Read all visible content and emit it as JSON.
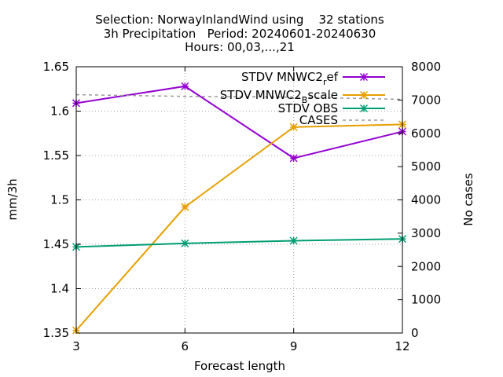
{
  "chart_data": {
    "type": "line",
    "title_lines": [
      "Selection: NorwayInlandWind using    32 stations",
      "3h Precipitation   Period: 20240601-20240630",
      "Hours: 00,03,...,21"
    ],
    "xlabel": "Forecast length",
    "ylabel": "mm/3h",
    "y2label": "No cases",
    "x": [
      3,
      6,
      9,
      12
    ],
    "xlim": [
      3,
      12
    ],
    "ylim": [
      1.35,
      1.65
    ],
    "y2lim": [
      0,
      8000
    ],
    "x_ticks": [
      "3",
      "6",
      "9",
      "12"
    ],
    "y_ticks": [
      "1.35",
      "1.4",
      "1.45",
      "1.5",
      "1.55",
      "1.6",
      "1.65"
    ],
    "y2_ticks": [
      "0",
      "1000",
      "2000",
      "3000",
      "4000",
      "5000",
      "6000",
      "7000",
      "8000"
    ],
    "grid": "dotted",
    "legend_position": "top-right",
    "series": [
      {
        "name": "STDV MNWC2_ref",
        "legend_text": "STDV MNWC2",
        "legend_sub": "r",
        "legend_after": "ef",
        "axis": "y",
        "color": "#9400d3",
        "marker": "star",
        "values": [
          1.609,
          1.628,
          1.547,
          1.577
        ]
      },
      {
        "name": "STDV MNWC2_Bscale",
        "legend_text": "STDV MNWC2",
        "legend_sub": "B",
        "legend_after": "scale",
        "axis": "y",
        "color": "#e69f00",
        "marker": "star",
        "values": [
          1.353,
          1.492,
          1.582,
          1.585
        ]
      },
      {
        "name": "STDV OBS",
        "legend_text": "STDV OBS",
        "legend_sub": "",
        "legend_after": "",
        "axis": "y",
        "color": "#009e73",
        "marker": "star",
        "values": [
          1.447,
          1.451,
          1.454,
          1.456
        ]
      },
      {
        "name": "CASES",
        "legend_text": "CASES",
        "legend_sub": "",
        "legend_after": "",
        "axis": "y2",
        "color": "#999999",
        "marker": "none",
        "dashed": true,
        "values": [
          7160,
          7110,
          7090,
          7020
        ]
      }
    ]
  }
}
